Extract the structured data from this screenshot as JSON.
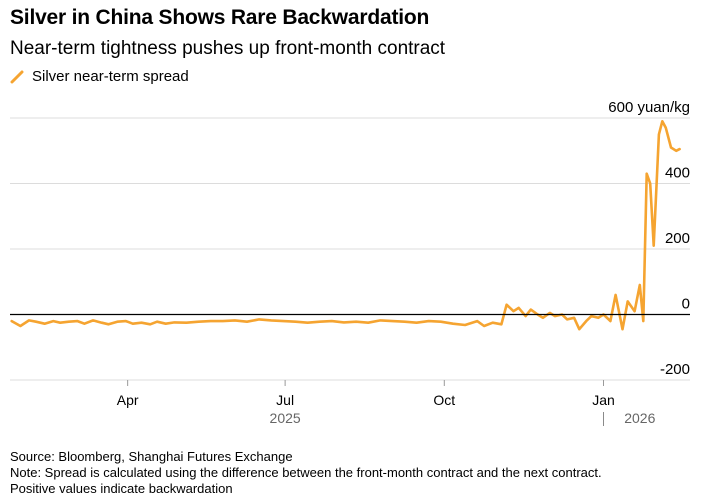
{
  "header": {
    "title": "Silver in China Shows Rare Backwardation",
    "subtitle": "Near-term tightness pushes up front-month contract"
  },
  "legend": {
    "label": "Silver near-term spread"
  },
  "colors": {
    "series": "#f5a431",
    "grid": "#dcdcdc",
    "zero_line": "#000000",
    "text": "#000000"
  },
  "footer": {
    "source": "Source: Bloomberg, Shanghai Futures Exchange",
    "note_line1": "Note: Spread is calculated using the difference between the front-month contract and the next contract.",
    "note_line2": "Positive values indicate backwardation"
  },
  "chart_data": {
    "type": "line",
    "title": "Silver in China Shows Rare Backwardation",
    "subtitle": "Near-term tightness pushes up front-month contract",
    "xlabel": "",
    "ylabel": "",
    "unit": "yuan/kg",
    "ylim": [
      -200,
      600
    ],
    "y_ticks": [
      -200,
      0,
      200,
      400,
      600
    ],
    "y_tick_labels": [
      "-200",
      "0",
      "200",
      "400",
      "600 yuan/kg"
    ],
    "y_axis_side": "right",
    "grid": true,
    "legend_position": "top-left",
    "x_range": [
      "2025-01-23",
      "2026-02-20"
    ],
    "x_ticks": [
      {
        "date": "2025-04-01",
        "label": "Apr"
      },
      {
        "date": "2025-07-01",
        "label": "Jul"
      },
      {
        "date": "2025-10-01",
        "label": "Oct"
      },
      {
        "date": "2026-01-01",
        "label": "Jan"
      }
    ],
    "x_year_labels": [
      {
        "date": "2025-07-01",
        "label": "2025"
      },
      {
        "date": "2026-01-22",
        "label": "2026"
      }
    ],
    "year_divider_date": "2026-01-01",
    "series": [
      {
        "name": "Silver near-term spread",
        "x": [
          "2025-01-24",
          "2025-01-29",
          "2025-02-03",
          "2025-02-07",
          "2025-02-12",
          "2025-02-17",
          "2025-02-21",
          "2025-02-26",
          "2025-03-03",
          "2025-03-07",
          "2025-03-12",
          "2025-03-17",
          "2025-03-21",
          "2025-03-26",
          "2025-03-31",
          "2025-04-04",
          "2025-04-09",
          "2025-04-14",
          "2025-04-18",
          "2025-04-23",
          "2025-04-28",
          "2025-05-05",
          "2025-05-12",
          "2025-05-19",
          "2025-05-26",
          "2025-06-02",
          "2025-06-09",
          "2025-06-16",
          "2025-06-23",
          "2025-06-30",
          "2025-07-07",
          "2025-07-14",
          "2025-07-21",
          "2025-07-28",
          "2025-08-04",
          "2025-08-11",
          "2025-08-18",
          "2025-08-25",
          "2025-09-01",
          "2025-09-08",
          "2025-09-15",
          "2025-09-22",
          "2025-09-29",
          "2025-10-06",
          "2025-10-13",
          "2025-10-20",
          "2025-10-24",
          "2025-10-29",
          "2025-11-03",
          "2025-11-06",
          "2025-11-10",
          "2025-11-13",
          "2025-11-17",
          "2025-11-20",
          "2025-11-24",
          "2025-11-27",
          "2025-12-01",
          "2025-12-04",
          "2025-12-08",
          "2025-12-11",
          "2025-12-15",
          "2025-12-18",
          "2025-12-22",
          "2025-12-25",
          "2025-12-29",
          "2026-01-01",
          "2026-01-05",
          "2026-01-08",
          "2026-01-12",
          "2026-01-15",
          "2026-01-19",
          "2026-01-22",
          "2026-01-24",
          "2026-01-26",
          "2026-01-28",
          "2026-01-30",
          "2026-02-02",
          "2026-02-04",
          "2026-02-06",
          "2026-02-09",
          "2026-02-12",
          "2026-02-14"
        ],
        "values": [
          -20,
          -35,
          -18,
          -22,
          -28,
          -20,
          -25,
          -22,
          -20,
          -28,
          -18,
          -25,
          -30,
          -22,
          -20,
          -28,
          -25,
          -30,
          -22,
          -28,
          -24,
          -25,
          -22,
          -20,
          -20,
          -18,
          -22,
          -15,
          -18,
          -20,
          -22,
          -25,
          -22,
          -20,
          -24,
          -22,
          -25,
          -18,
          -20,
          -22,
          -25,
          -20,
          -22,
          -28,
          -32,
          -20,
          -35,
          -25,
          -30,
          30,
          10,
          20,
          -5,
          15,
          0,
          -10,
          5,
          -5,
          0,
          -15,
          -10,
          -45,
          -20,
          -5,
          -10,
          0,
          -20,
          60,
          -45,
          40,
          10,
          90,
          -20,
          430,
          400,
          210,
          550,
          590,
          570,
          510,
          500,
          505
        ]
      }
    ]
  }
}
